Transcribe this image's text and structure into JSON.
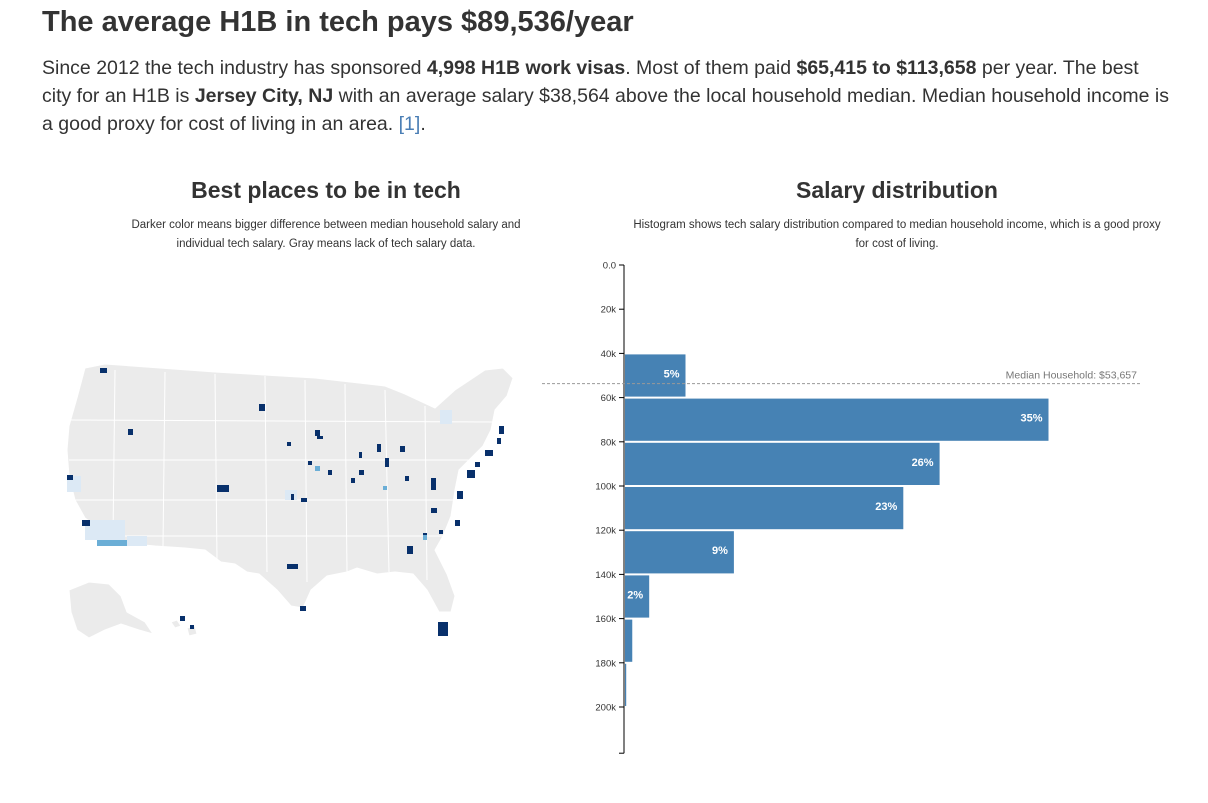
{
  "header": {
    "title": "The average H1B in tech pays $89,536/year",
    "intro_part1": "Since 2012 the tech industry has sponsored ",
    "intro_bold1": "4,998 H1B work visas",
    "intro_part2": ". Most of them paid ",
    "intro_bold2": "$65,415 to $113,658",
    "intro_part3": " per year. The best city for an H1B is ",
    "intro_bold3": "Jersey City, NJ",
    "intro_part4": " with an average salary $38,564 above the local household median. Median household income is a good proxy for cost of living in an area. ",
    "reference_link": "[1]",
    "intro_end": "."
  },
  "map_panel": {
    "title": "Best places to be in tech",
    "subtitle": "Darker color means bigger difference between median household salary and individual tech salary. Gray means lack of tech salary data.",
    "colors": {
      "no_data": "#ebebeb",
      "border": "#ffffff",
      "low": "#e3edf7",
      "mid_low": "#c6dbef",
      "mid": "#6baed6",
      "high": "#08306b"
    }
  },
  "histogram_panel": {
    "title": "Salary distribution",
    "subtitle": "Histogram shows tech salary distribution compared to median household income, which is a good proxy for cost of living."
  },
  "chart_data": {
    "type": "bar",
    "orientation": "horizontal",
    "title": "Salary distribution",
    "axis": {
      "min": 0,
      "max": 220000,
      "ticks": [
        0,
        20000,
        40000,
        60000,
        80000,
        100000,
        120000,
        140000,
        160000,
        180000,
        200000
      ],
      "tick_labels": [
        "0.0",
        "20k",
        "40k",
        "60k",
        "80k",
        "100k",
        "120k",
        "140k",
        "160k",
        "180k",
        "200k"
      ]
    },
    "bins": [
      {
        "from": 40000,
        "to": 60000,
        "percent": 5,
        "label": "5%"
      },
      {
        "from": 60000,
        "to": 80000,
        "percent": 35,
        "label": "35%"
      },
      {
        "from": 80000,
        "to": 100000,
        "percent": 26,
        "label": "26%"
      },
      {
        "from": 100000,
        "to": 120000,
        "percent": 23,
        "label": "23%"
      },
      {
        "from": 120000,
        "to": 140000,
        "percent": 9,
        "label": "9%"
      },
      {
        "from": 140000,
        "to": 160000,
        "percent": 2,
        "label": "2%"
      },
      {
        "from": 160000,
        "to": 180000,
        "percent": 0.6,
        "label": ""
      },
      {
        "from": 180000,
        "to": 200000,
        "percent": 0.1,
        "label": ""
      }
    ],
    "median_household": {
      "value": 53657,
      "label": "Median Household: $53,657"
    },
    "bar_color": "#4682b4",
    "median_line_color": "#999999"
  }
}
